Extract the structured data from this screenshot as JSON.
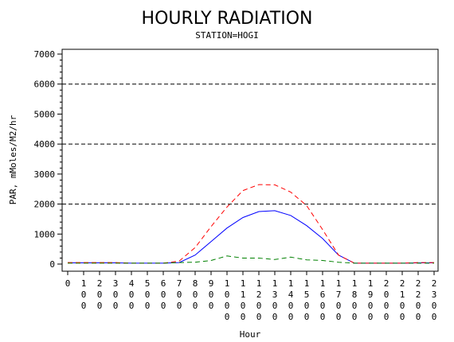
{
  "chart_data": {
    "type": "line",
    "title": "HOURLY RADIATION",
    "subtitle": "STATION=HOGI",
    "xlabel": "Hour",
    "ylabel": "PAR, mMoles/M2/hr",
    "ylim": [
      0,
      7000
    ],
    "yticks": [
      "0",
      "1000",
      "2000",
      "3000",
      "4000",
      "5000",
      "6000",
      "7000"
    ],
    "y_gridlines": [
      2000,
      4000,
      6000
    ],
    "x": [
      0,
      100,
      200,
      300,
      400,
      500,
      600,
      700,
      800,
      900,
      1000,
      1100,
      1200,
      1300,
      1400,
      1500,
      1600,
      1700,
      1800,
      1900,
      2000,
      2100,
      2200,
      2300
    ],
    "xtick_labels": [
      "0",
      "100",
      "200",
      "300",
      "400",
      "500",
      "600",
      "700",
      "800",
      "900",
      "1000",
      "1100",
      "1200",
      "1300",
      "1400",
      "1500",
      "1600",
      "1700",
      "1800",
      "1900",
      "2000",
      "2100",
      "2200",
      "2300"
    ],
    "series": [
      {
        "color": "#0000ff",
        "dash": "solid",
        "values": [
          40,
          40,
          40,
          40,
          30,
          30,
          30,
          50,
          300,
          750,
          1200,
          1550,
          1750,
          1780,
          1620,
          1280,
          850,
          300,
          30,
          30,
          30,
          30,
          40,
          40
        ]
      },
      {
        "color": "#ff0000",
        "dash": "dashed",
        "values": [
          50,
          50,
          50,
          50,
          30,
          30,
          30,
          100,
          550,
          1250,
          1900,
          2450,
          2650,
          2640,
          2400,
          1950,
          1150,
          300,
          30,
          30,
          30,
          30,
          50,
          50
        ]
      },
      {
        "color": "#008000",
        "dash": "dashed",
        "values": [
          30,
          30,
          30,
          30,
          30,
          30,
          30,
          50,
          60,
          120,
          270,
          200,
          200,
          150,
          230,
          140,
          120,
          60,
          30,
          30,
          30,
          30,
          30,
          30
        ]
      }
    ]
  }
}
